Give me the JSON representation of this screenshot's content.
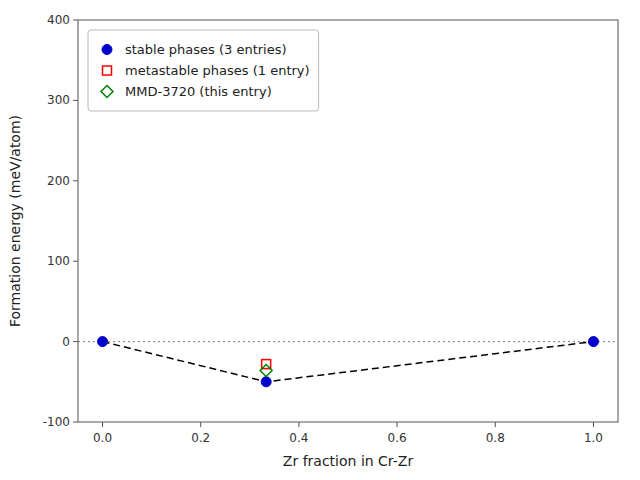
{
  "chart_data": {
    "type": "scatter",
    "title": "",
    "x_label": "Zr fraction in Cr-Zr",
    "y_label": "Formation energy (meV/atom)",
    "xlim": [
      -0.05,
      1.05
    ],
    "ylim": [
      -100,
      400
    ],
    "xticks": [
      {
        "value": 0,
        "label": "0.0"
      },
      0.2,
      0.4,
      0.6,
      0.8,
      {
        "value": 1,
        "label": "1.0"
      }
    ],
    "yticks": [
      -100,
      0,
      100,
      200,
      300,
      400
    ],
    "grid": false,
    "legend": "upper left",
    "hline_y": 0,
    "series": [
      {
        "type": "line",
        "line_style": "dashed",
        "color": "black",
        "x": [
          0.0,
          0.3333,
          1.0
        ],
        "values": [
          0.0,
          -50.0,
          0.0
        ]
      },
      {
        "name": "stable phases (3 entries)",
        "type": "scatter",
        "marker": "circle",
        "color": "#0000cc",
        "x": [
          0.0,
          0.3333,
          1.0
        ],
        "values": [
          0.0,
          -50.0,
          0.0
        ]
      },
      {
        "name": "metastable phases (1 entry)",
        "type": "scatter",
        "marker": "square-open",
        "color": "red",
        "x": [
          0.3333
        ],
        "values": [
          -28.0
        ]
      },
      {
        "name": "MMD-3720 (this entry)",
        "type": "scatter",
        "marker": "diamond-open",
        "color": "green",
        "x": [
          0.3333
        ],
        "values": [
          -36.0
        ]
      }
    ]
  }
}
